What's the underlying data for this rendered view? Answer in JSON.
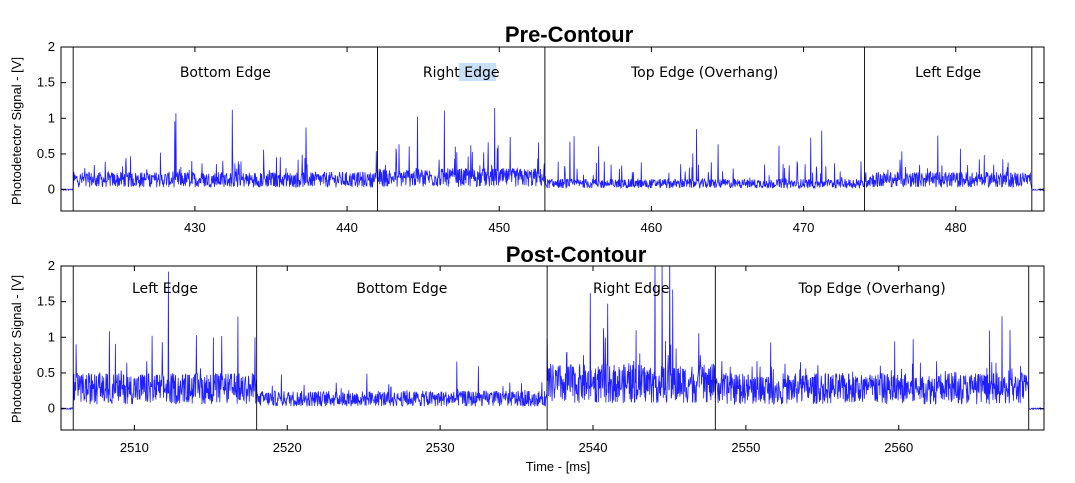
{
  "chart_data": [
    {
      "type": "line",
      "title": "Pre-Contour",
      "ylabel": "Photodetector Signal - [V]",
      "xlabel": "",
      "xlim": [
        421.2,
        485.8
      ],
      "ylim": [
        -0.3,
        2
      ],
      "xticks": [
        430,
        440,
        450,
        460,
        470,
        480
      ],
      "yticks": [
        0,
        0.5,
        1,
        1.5,
        2
      ],
      "line_color": "#1f1fff",
      "region_boundaries": [
        422.0,
        442.0,
        453.0,
        474.0,
        485.0
      ],
      "regions": [
        {
          "label": "Bottom Edge",
          "start": 422.0,
          "end": 442.0,
          "baseline": 0.1,
          "spike_max": 1.05
        },
        {
          "label": "Right Edge",
          "start": 442.0,
          "end": 453.0,
          "baseline": 0.12,
          "spike_max": 1.4,
          "highlighted_word": "Edge"
        },
        {
          "label": "Top Edge (Overhang)",
          "start": 453.0,
          "end": 474.0,
          "baseline": 0.06,
          "spike_max": 0.8
        },
        {
          "label": "Left Edge",
          "start": 474.0,
          "end": 485.0,
          "baseline": 0.1,
          "spike_max": 0.75
        }
      ],
      "baseline_outside": 0.0
    },
    {
      "type": "line",
      "title": "Post-Contour",
      "ylabel": "Photodetector Signal - [V]",
      "xlabel": "Time - [ms]",
      "xlim": [
        2505.2,
        2569.5
      ],
      "ylim": [
        -0.3,
        2
      ],
      "xticks": [
        2510,
        2520,
        2530,
        2540,
        2550,
        2560
      ],
      "yticks": [
        0,
        0.5,
        1,
        1.5,
        2
      ],
      "line_color": "#1f1fff",
      "region_boundaries": [
        2506.0,
        2518.0,
        2537.0,
        2548.0,
        2568.5
      ],
      "regions": [
        {
          "label": "Left Edge",
          "start": 2506.0,
          "end": 2518.0,
          "baseline": 0.2,
          "spike_max": 2.0
        },
        {
          "label": "Bottom Edge",
          "start": 2518.0,
          "end": 2537.0,
          "baseline": 0.1,
          "spike_max": 0.6
        },
        {
          "label": "Right Edge",
          "start": 2537.0,
          "end": 2548.0,
          "baseline": 0.25,
          "spike_max": 2.0
        },
        {
          "label": "Top Edge (Overhang)",
          "start": 2548.0,
          "end": 2568.5,
          "baseline": 0.2,
          "spike_max": 1.1
        }
      ],
      "baseline_outside": 0.0
    }
  ]
}
